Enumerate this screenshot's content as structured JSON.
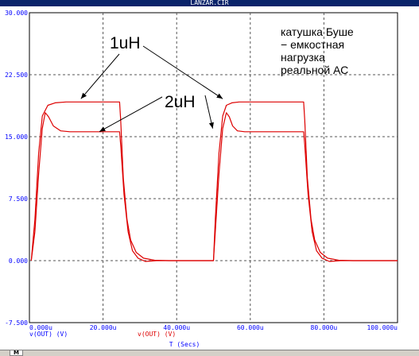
{
  "window": {
    "title": "LANZAR.CIR"
  },
  "tabs": [
    {
      "label": "M"
    }
  ],
  "colors": {
    "trace": "#dd0000",
    "axis_labels": "#0000ff",
    "legend_1": "#0000ff",
    "legend_2": "#dd0000",
    "grid": "#555555",
    "annotation": "#000000"
  },
  "chart_data": {
    "type": "line",
    "title": "LANZAR.CIR",
    "xlabel": "T (Secs)",
    "ylabel": "",
    "xlim": [
      0,
      100
    ],
    "ylim": [
      -7.5,
      30
    ],
    "x_unit": "u",
    "x_ticks": [
      0,
      20,
      40,
      60,
      80,
      100
    ],
    "x_tick_labels": [
      "0.000u",
      "20.000u",
      "40.000u",
      "60.000u",
      "80.000u",
      "100.000u"
    ],
    "y_ticks": [
      -7.5,
      0,
      7.5,
      15,
      22.5,
      30
    ],
    "y_tick_labels": [
      "-7.500",
      "0.000",
      "7.500",
      "15.000",
      "22.500",
      "30.000"
    ],
    "grid": true,
    "legend_items": [
      "v(OUT) (V)",
      "v(OUT) (V)"
    ],
    "series": [
      {
        "name": "v(OUT) (V)",
        "x": [
          0.5,
          1.5,
          2.5,
          3.5,
          5,
          7,
          10,
          15,
          20,
          24.5,
          24.8,
          25.5,
          26.5,
          27.5,
          29,
          31,
          34,
          38,
          45,
          50,
          50.5,
          51.5,
          52.5,
          53.5,
          55,
          57,
          60,
          65,
          70,
          74.5,
          74.8,
          75.5,
          76.5,
          77.5,
          79,
          81,
          84,
          88,
          95,
          100
        ],
        "values": [
          0,
          5,
          13,
          17.5,
          18.8,
          19.1,
          19.2,
          19.2,
          19.2,
          19.2,
          17,
          10,
          5,
          2.5,
          1,
          0.3,
          0.05,
          0,
          0,
          0,
          5,
          13,
          17.5,
          18.8,
          19.1,
          19.2,
          19.2,
          19.2,
          19.2,
          19.2,
          17,
          10,
          5,
          2.5,
          1,
          0.3,
          0.05,
          0,
          0,
          0
        ]
      },
      {
        "name": "v(OUT) (V)",
        "x": [
          0.5,
          1.5,
          2.5,
          3.5,
          4.3,
          5.2,
          6.5,
          8.5,
          11,
          15,
          20,
          24.5,
          24.8,
          25.7,
          26.8,
          28,
          29.5,
          31.5,
          34.5,
          38,
          45,
          50,
          50.5,
          51.5,
          52.5,
          53.5,
          54.3,
          55.2,
          56.5,
          58.5,
          61,
          65,
          70,
          74.5,
          74.8,
          75.7,
          76.8,
          78,
          79.5,
          81.5,
          84.5,
          88,
          95,
          100
        ],
        "values": [
          0,
          3.5,
          10.5,
          16,
          17.9,
          17.4,
          16.3,
          15.7,
          15.6,
          15.6,
          15.6,
          15.6,
          14,
          8,
          3.5,
          1.2,
          0.3,
          -0.1,
          0,
          0,
          0,
          0,
          3.5,
          10.5,
          16,
          17.9,
          17.4,
          16.3,
          15.7,
          15.6,
          15.6,
          15.6,
          15.6,
          15.6,
          14,
          8,
          3.5,
          1.2,
          0.3,
          -0.1,
          0,
          0,
          0,
          0
        ]
      }
    ],
    "annotations": [
      {
        "text": "1uH",
        "targets": [
          [
            14,
            19.3
          ],
          [
            52.5,
            19.3
          ]
        ]
      },
      {
        "text": "2uH",
        "targets": [
          [
            19,
            15.8
          ],
          [
            48.5,
            15.8
          ]
        ]
      },
      {
        "text": "катушка Буше\n− емкостная\nнагрузка\nреальной АС",
        "targets": []
      }
    ]
  }
}
